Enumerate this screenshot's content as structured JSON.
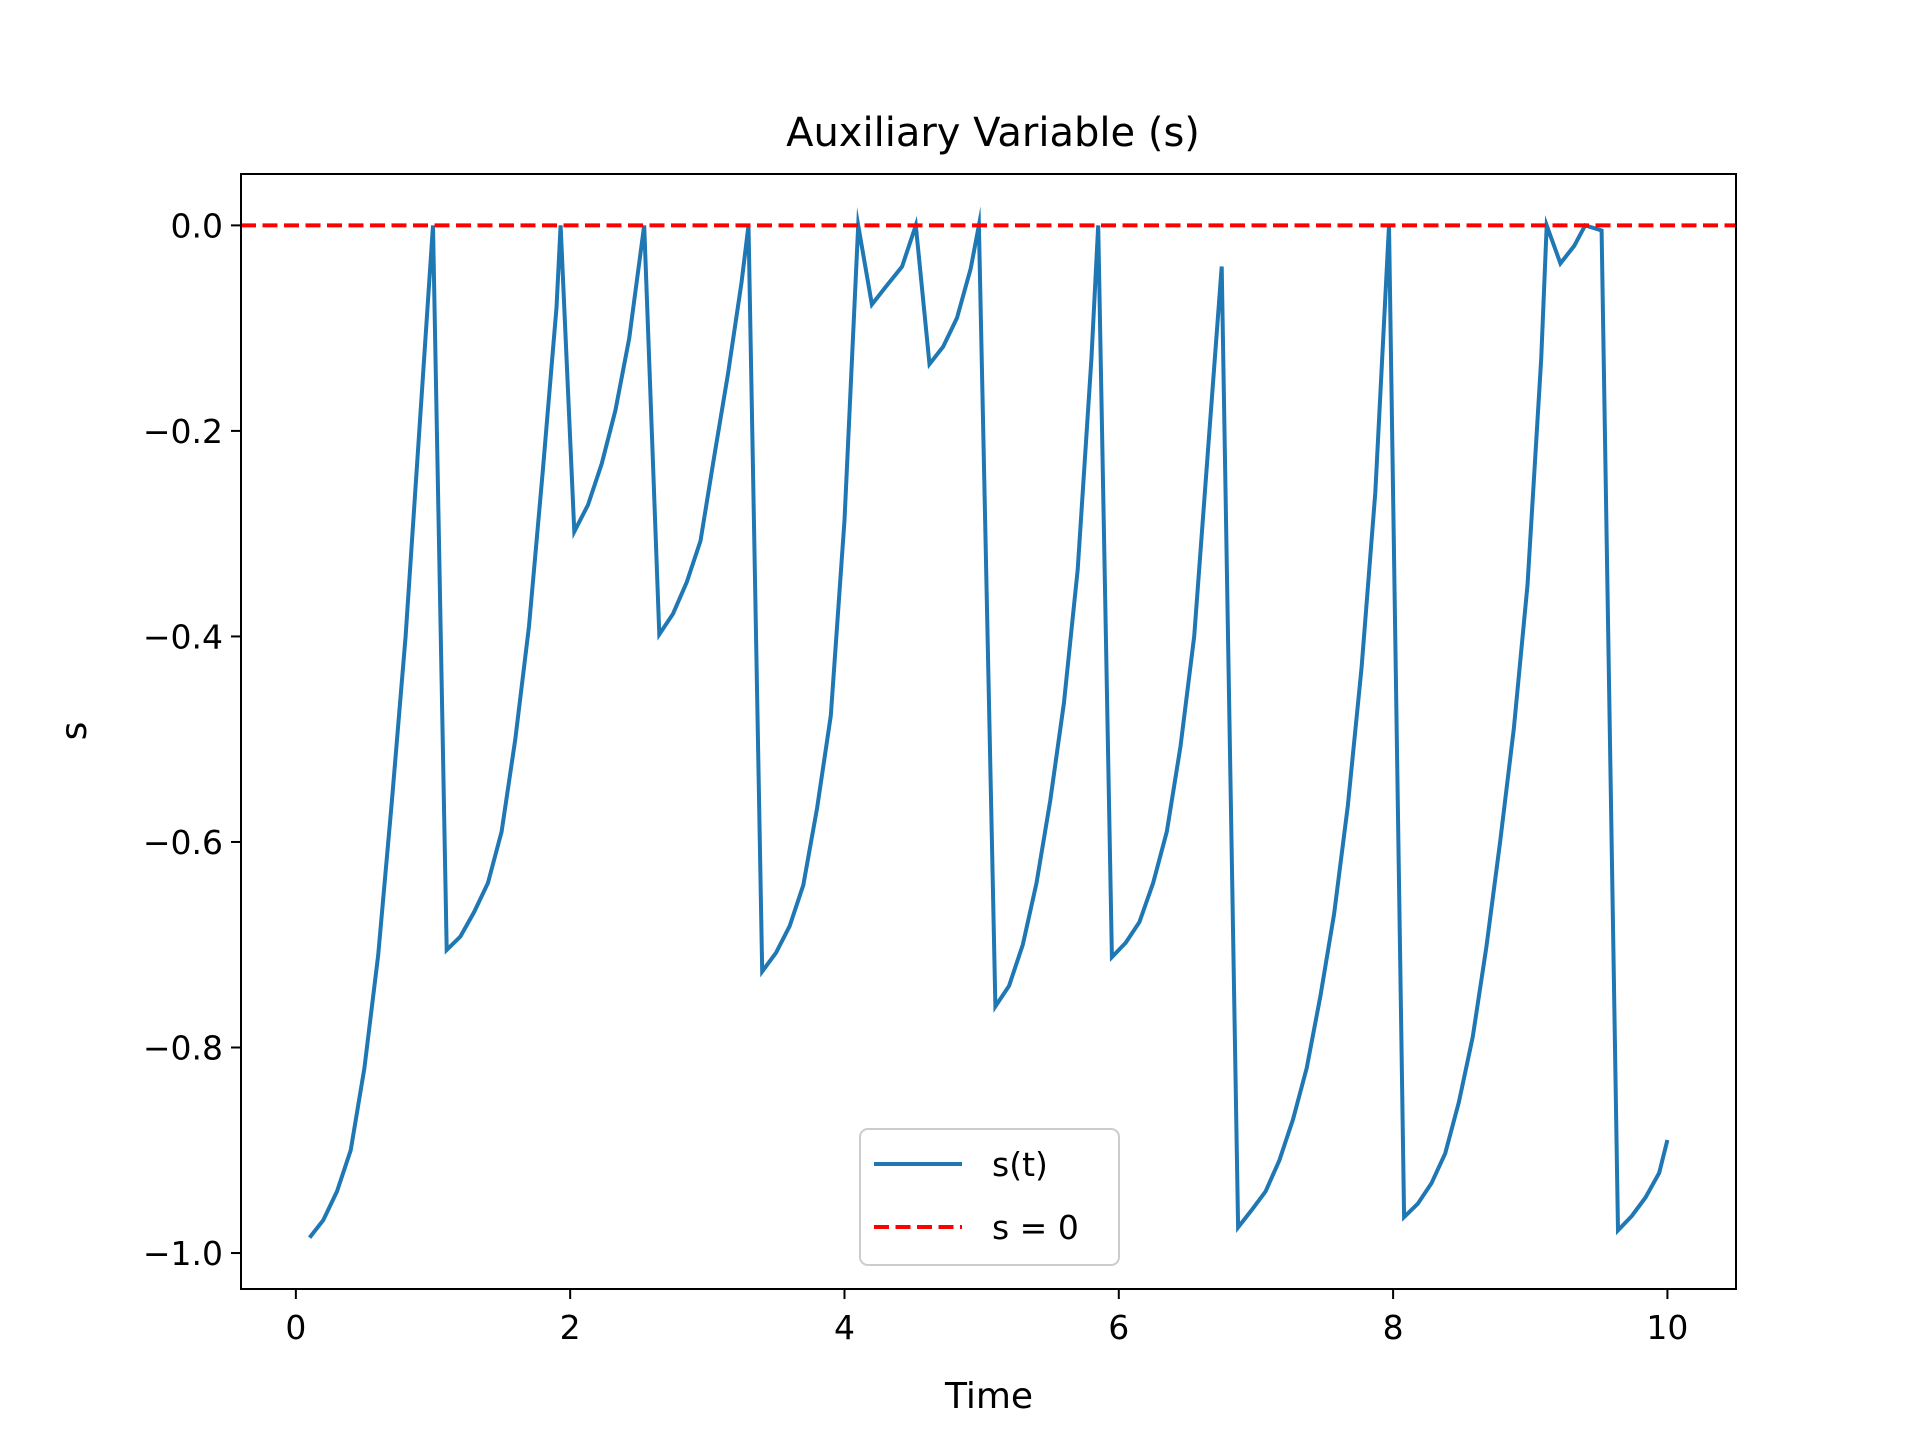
{
  "chart_data": {
    "type": "line",
    "title": "Auxiliary Variable (s)",
    "xlabel": "Time",
    "ylabel": "s",
    "xlim": [
      -0.4,
      10.5
    ],
    "ylim": [
      -1.035,
      0.05
    ],
    "xticks": [
      0,
      2,
      4,
      6,
      8,
      10
    ],
    "xtick_labels": [
      "0",
      "2",
      "4",
      "6",
      "8",
      "10"
    ],
    "yticks": [
      0.0,
      -0.2,
      -0.4,
      -0.6,
      -0.8,
      -1.0
    ],
    "ytick_labels": [
      "0.0",
      "−0.2",
      "−0.4",
      "−0.6",
      "−0.8",
      "−1.0"
    ],
    "grid": false,
    "legend_position": "lower center",
    "colors": {
      "series": "#1f77b4",
      "reference": "#ff0000"
    },
    "series": [
      {
        "name": "s(t)",
        "style": "solid",
        "x": [
          0.1,
          0.2,
          0.3,
          0.4,
          0.5,
          0.6,
          0.7,
          0.8,
          0.9,
          1.0,
          1.1,
          1.2,
          1.3,
          1.4,
          1.5,
          1.6,
          1.7,
          1.8,
          1.9,
          1.93,
          2.03,
          2.13,
          2.23,
          2.33,
          2.43,
          2.54,
          2.65,
          2.75,
          2.85,
          2.95,
          3.05,
          3.15,
          3.25,
          3.3,
          3.4,
          3.5,
          3.6,
          3.7,
          3.8,
          3.9,
          4.0,
          4.1,
          4.2,
          4.3,
          4.42,
          4.52,
          4.62,
          4.72,
          4.82,
          4.92,
          4.98,
          5.1,
          5.2,
          5.3,
          5.4,
          5.5,
          5.6,
          5.7,
          5.8,
          5.85,
          5.95,
          6.05,
          6.15,
          6.25,
          6.35,
          6.45,
          6.55,
          6.65,
          6.75,
          6.87,
          6.97,
          7.07,
          7.17,
          7.27,
          7.37,
          7.47,
          7.57,
          7.67,
          7.77,
          7.87,
          7.97,
          8.08,
          8.18,
          8.28,
          8.38,
          8.48,
          8.58,
          8.68,
          8.78,
          8.88,
          8.98,
          9.08,
          9.12,
          9.22,
          9.32,
          9.4,
          9.52,
          9.64,
          9.74,
          9.84,
          9.94,
          10.0
        ],
        "y": [
          -0.985,
          -0.968,
          -0.94,
          -0.9,
          -0.82,
          -0.71,
          -0.56,
          -0.4,
          -0.2,
          0.0,
          -0.705,
          -0.692,
          -0.668,
          -0.64,
          -0.59,
          -0.5,
          -0.39,
          -0.24,
          -0.08,
          0.0,
          -0.298,
          -0.272,
          -0.232,
          -0.18,
          -0.11,
          0.0,
          -0.398,
          -0.378,
          -0.347,
          -0.307,
          -0.225,
          -0.145,
          -0.055,
          0.0,
          -0.726,
          -0.708,
          -0.682,
          -0.642,
          -0.567,
          -0.477,
          -0.287,
          0.0,
          -0.077,
          -0.06,
          -0.04,
          0.0,
          -0.135,
          -0.118,
          -0.09,
          -0.042,
          0.0,
          -0.76,
          -0.74,
          -0.7,
          -0.64,
          -0.56,
          -0.465,
          -0.335,
          -0.13,
          0.0,
          -0.712,
          -0.698,
          -0.678,
          -0.64,
          -0.59,
          -0.507,
          -0.4,
          -0.22,
          -0.04,
          -0.975,
          -0.958,
          -0.94,
          -0.91,
          -0.87,
          -0.82,
          -0.75,
          -0.67,
          -0.565,
          -0.43,
          -0.26,
          0.0,
          -0.965,
          -0.952,
          -0.932,
          -0.903,
          -0.853,
          -0.79,
          -0.702,
          -0.6,
          -0.49,
          -0.35,
          -0.13,
          0.0,
          -0.037,
          -0.02,
          0.0,
          -0.005,
          -0.978,
          -0.964,
          -0.946,
          -0.922,
          -0.89
        ]
      },
      {
        "name": "s = 0",
        "style": "dashed",
        "x": [
          -0.4,
          10.5
        ],
        "y": [
          0.0,
          0.0
        ]
      }
    ]
  }
}
